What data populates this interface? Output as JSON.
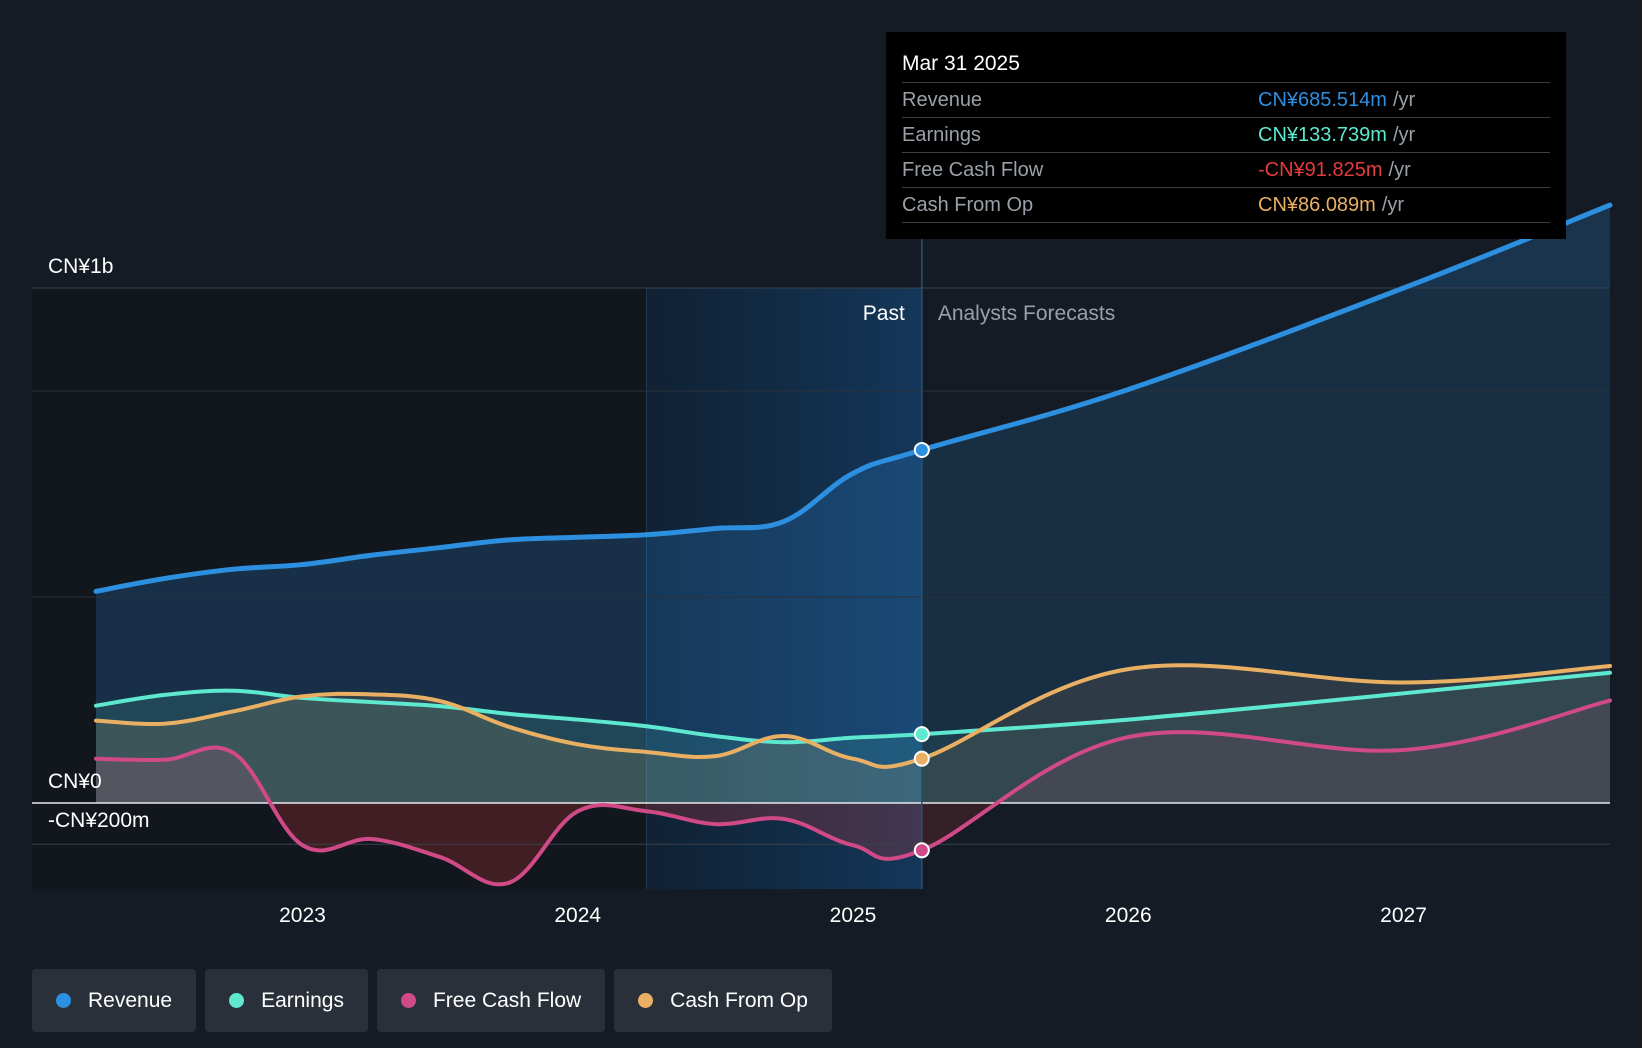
{
  "chart_data": {
    "type": "line",
    "y_labels": [
      "CN¥1b",
      "CN¥0",
      "-CN¥200m"
    ],
    "x_labels": [
      "2023",
      "2024",
      "2025",
      "2026",
      "2027"
    ],
    "period_labels": {
      "past": "Past",
      "forecast": "Analysts Forecasts"
    },
    "ylim": [
      -200,
      1000
    ],
    "xlim": [
      2022.25,
      2027.75
    ],
    "split_x": 2025.25,
    "shade_start_x": 2024.25,
    "series": [
      {
        "key": "revenue",
        "name": "Revenue",
        "color": "#2d8fe0",
        "values": [
          [
            2022.25,
            411
          ],
          [
            2022.5,
            436
          ],
          [
            2022.75,
            454
          ],
          [
            2023.0,
            463
          ],
          [
            2023.25,
            481
          ],
          [
            2023.5,
            496
          ],
          [
            2023.75,
            511
          ],
          [
            2024.0,
            516
          ],
          [
            2024.25,
            521
          ],
          [
            2024.5,
            533
          ],
          [
            2024.75,
            547
          ],
          [
            2025.0,
            640
          ],
          [
            2025.25,
            685.514
          ],
          [
            2026.0,
            803
          ],
          [
            2027.0,
            1000
          ],
          [
            2027.75,
            1161
          ]
        ]
      },
      {
        "key": "earnings",
        "name": "Earnings",
        "color": "#5ee8d0",
        "values": [
          [
            2022.25,
            189
          ],
          [
            2022.5,
            210
          ],
          [
            2022.75,
            218
          ],
          [
            2023.0,
            204
          ],
          [
            2023.25,
            196
          ],
          [
            2023.5,
            188
          ],
          [
            2023.75,
            173
          ],
          [
            2024.0,
            162
          ],
          [
            2024.25,
            149
          ],
          [
            2024.5,
            130
          ],
          [
            2024.75,
            118
          ],
          [
            2025.0,
            127
          ],
          [
            2025.25,
            133.739
          ],
          [
            2026.0,
            162
          ],
          [
            2027.0,
            213
          ],
          [
            2027.75,
            253
          ]
        ]
      },
      {
        "key": "fcf",
        "name": "Free Cash Flow",
        "color": "#cf4a86",
        "values": [
          [
            2022.25,
            86
          ],
          [
            2022.5,
            84
          ],
          [
            2022.75,
            97
          ],
          [
            2023.0,
            -82
          ],
          [
            2023.25,
            -70
          ],
          [
            2023.5,
            -105
          ],
          [
            2023.75,
            -155
          ],
          [
            2024.0,
            -16
          ],
          [
            2024.25,
            -16
          ],
          [
            2024.5,
            -41
          ],
          [
            2024.75,
            -31
          ],
          [
            2025.0,
            -82
          ],
          [
            2025.25,
            -91.825
          ],
          [
            2026.0,
            128
          ],
          [
            2027.0,
            103
          ],
          [
            2027.75,
            199
          ]
        ]
      },
      {
        "key": "cfo",
        "name": "Cash From Op",
        "color": "#e9b063",
        "values": [
          [
            2022.25,
            160
          ],
          [
            2022.5,
            154
          ],
          [
            2022.75,
            178
          ],
          [
            2023.0,
            207
          ],
          [
            2023.25,
            211
          ],
          [
            2023.5,
            198
          ],
          [
            2023.75,
            148
          ],
          [
            2024.0,
            114
          ],
          [
            2024.25,
            99
          ],
          [
            2024.5,
            91
          ],
          [
            2024.75,
            130
          ],
          [
            2025.0,
            86
          ],
          [
            2025.25,
            86.089
          ],
          [
            2026.0,
            260
          ],
          [
            2027.0,
            234
          ],
          [
            2027.75,
            266
          ]
        ]
      }
    ]
  },
  "tooltip": {
    "date": "Mar 31 2025",
    "rows": [
      {
        "label": "Revenue",
        "value": "CN¥685.514m",
        "unit": "/yr",
        "color": "#2d8fe0"
      },
      {
        "label": "Earnings",
        "value": "CN¥133.739m",
        "unit": "/yr",
        "color": "#5ee8d0"
      },
      {
        "label": "Free Cash Flow",
        "value": "-CN¥91.825m",
        "unit": "/yr",
        "color": "#e53b3b"
      },
      {
        "label": "Cash From Op",
        "value": "CN¥86.089m",
        "unit": "/yr",
        "color": "#e9b063"
      }
    ]
  },
  "legend": [
    {
      "label": "Revenue",
      "color": "#2d8fe0"
    },
    {
      "label": "Earnings",
      "color": "#5ee8d0"
    },
    {
      "label": "Free Cash Flow",
      "color": "#cf4a86"
    },
    {
      "label": "Cash From Op",
      "color": "#e9b063"
    }
  ]
}
